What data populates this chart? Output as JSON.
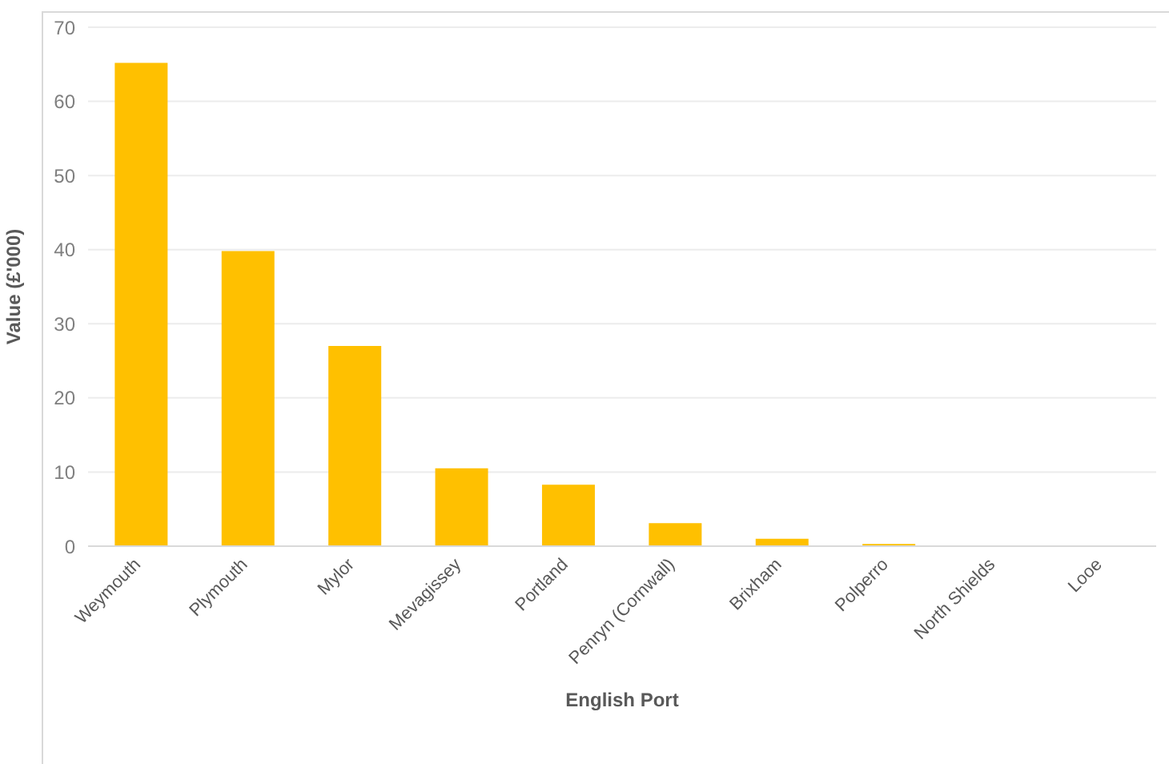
{
  "chart_data": {
    "type": "bar",
    "xlabel": "English Port",
    "ylabel": "Value (£'000)",
    "categories": [
      "Weymouth",
      "Plymouth",
      "Mylor",
      "Mevagissey",
      "Portland",
      "Penryn (Cornwall)",
      "Brixham",
      "Polperro",
      "North Shields",
      "Looe"
    ],
    "values": [
      65.2,
      39.8,
      27.0,
      10.5,
      8.3,
      3.1,
      1.0,
      0.3,
      0,
      0
    ],
    "color": "#ffc000",
    "ylim": [
      0,
      70
    ],
    "yticks": [
      0,
      10,
      20,
      30,
      40,
      50,
      60,
      70
    ],
    "grid": "y"
  }
}
